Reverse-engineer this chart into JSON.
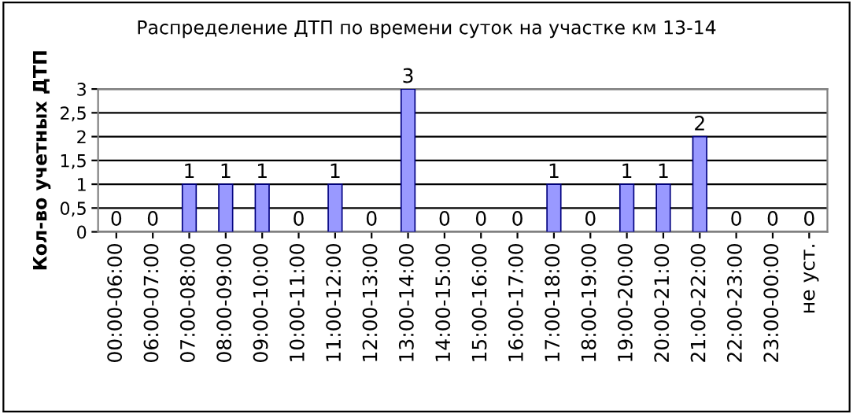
{
  "chart_data": {
    "type": "bar",
    "title": "Распределение ДТП по времени суток на участке км 13-14",
    "ylabel": "Кол-во учетных ДТП",
    "categories": [
      "00:00-06:00",
      "06:00-07:00",
      "07:00-08:00",
      "08:00-09:00",
      "09:00-10:00",
      "10:00-11:00",
      "11:00-12:00",
      "12:00-13:00",
      "13:00-14:00",
      "14:00-15:00",
      "15:00-16:00",
      "16:00-17:00",
      "17:00-18:00",
      "18:00-19:00",
      "19:00-20:00",
      "20:00-21:00",
      "21:00-22:00",
      "22:00-23:00",
      "23:00-00:00",
      "не уст."
    ],
    "values": [
      0,
      0,
      1,
      1,
      1,
      0,
      1,
      0,
      3,
      0,
      0,
      0,
      1,
      0,
      1,
      1,
      2,
      0,
      0,
      0
    ],
    "color": "#9999ff",
    "ylim": [
      0,
      3
    ],
    "yticks": [
      0,
      {
        "value": 0.5,
        "label": "0,5"
      },
      1,
      {
        "value": 1.5,
        "label": "1,5"
      },
      2,
      {
        "value": 2.5,
        "label": "2,5"
      },
      3
    ],
    "grid": "y",
    "data_labels": true
  }
}
